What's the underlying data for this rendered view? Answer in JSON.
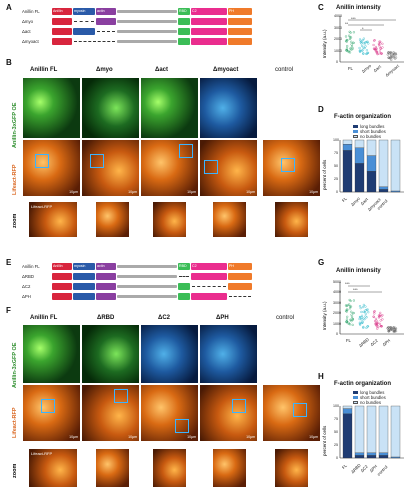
{
  "labels": {
    "A": "A",
    "B": "B",
    "C": "C",
    "D": "D",
    "E": "E",
    "F": "F",
    "G": "G",
    "H": "H"
  },
  "domains": {
    "anillin": "Anillin",
    "myosin": "myosin",
    "actin": "actin",
    "rbd": "RBD",
    "c2": "C2",
    "ph": "PH"
  },
  "constructs_top": [
    "Anillin FL",
    "Δmyo",
    "Δact",
    "Δmyoact"
  ],
  "constructs_bottom": [
    "Anillin FL",
    "ΔRBD",
    "ΔC2",
    "ΔPH"
  ],
  "cols_top": [
    "Anillin FL",
    "Δmyo",
    "Δact",
    "Δmyoact",
    "control"
  ],
  "cols_bottom": [
    "Anillin FL",
    "ΔRBD",
    "ΔC2",
    "ΔPH",
    "control"
  ],
  "row_labels": {
    "gfp": "Anillin-3xGFP OE",
    "rfp": "Lifeact-RFP",
    "zoom": "zoom"
  },
  "zoom_inset": "Lifeact-RFP",
  "scale": "10μm",
  "chartC": {
    "title": "Anillin intensity",
    "ylabel": "Intensity (a.u.)",
    "yticks": [
      "4000",
      "3000",
      "2000",
      "1000",
      "0"
    ],
    "cats": [
      "FL",
      "Δmyo",
      "Δact",
      "Δmyoact"
    ],
    "sig": [
      "***",
      "**",
      "*"
    ]
  },
  "chartD": {
    "title": "F-actin organization",
    "ylabel": "percent of cells",
    "yticks": [
      "100",
      "75",
      "50",
      "25",
      "0"
    ],
    "cats": [
      "FL",
      "Δmyo",
      "Δact",
      "Δmyoact",
      "control"
    ],
    "legend": [
      "long bundles",
      "short bundles",
      "no bundles"
    ]
  },
  "chartG": {
    "title": "Anillin intensity",
    "ylabel": "Intensity (a.u.)",
    "yticks": [
      "5000",
      "4000",
      "3000",
      "2000",
      "1000",
      "0"
    ],
    "cats": [
      "FL",
      "ΔRBD",
      "ΔC2",
      "ΔPH"
    ],
    "sig": [
      "***",
      "***"
    ]
  },
  "chartH": {
    "title": "F-actin organization",
    "ylabel": "percent of cells",
    "yticks": [
      "100",
      "75",
      "50",
      "25",
      "0"
    ],
    "cats": [
      "FL",
      "ΔRBD",
      "ΔC2",
      "ΔPH",
      "control"
    ],
    "legend": [
      "long bundles",
      "short bundles",
      "no bundles"
    ]
  },
  "chart_data": [
    {
      "type": "bar",
      "title": "F-actin organization",
      "categories": [
        "FL",
        "Δmyo",
        "Δact",
        "Δmyoact",
        "control"
      ],
      "series": [
        {
          "name": "long bundles",
          "values": [
            80,
            55,
            40,
            5,
            0
          ]
        },
        {
          "name": "short bundles",
          "values": [
            12,
            30,
            30,
            5,
            2
          ]
        },
        {
          "name": "no bundles",
          "values": [
            8,
            15,
            30,
            90,
            98
          ]
        }
      ],
      "ylim": [
        0,
        100
      ],
      "ylabel": "percent of cells"
    },
    {
      "type": "bar",
      "title": "F-actin organization",
      "categories": [
        "FL",
        "ΔRBD",
        "ΔC2",
        "ΔPH",
        "control"
      ],
      "series": [
        {
          "name": "long bundles",
          "values": [
            85,
            5,
            5,
            5,
            0
          ]
        },
        {
          "name": "short bundles",
          "values": [
            10,
            5,
            5,
            5,
            2
          ]
        },
        {
          "name": "no bundles",
          "values": [
            5,
            90,
            90,
            90,
            98
          ]
        }
      ],
      "ylim": [
        0,
        100
      ],
      "ylabel": "percent of cells"
    }
  ],
  "colors": {
    "anillin": "#d8253d",
    "myosin": "#2a5aa8",
    "actin": "#8a3fa0",
    "rbd": "#3bbd57",
    "c2": "#ea2d8e",
    "ph": "#f07a2a",
    "long": "#1f3c73",
    "short": "#4a8fd6",
    "none": "#c9e2f6"
  }
}
